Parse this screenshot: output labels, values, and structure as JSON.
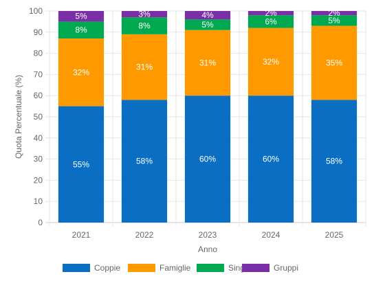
{
  "chart_data": {
    "type": "bar",
    "stacked": true,
    "categories": [
      "2021",
      "2022",
      "2023",
      "2024",
      "2025"
    ],
    "series": [
      {
        "name": "Coppie",
        "color": "#0a6fc2",
        "values": [
          55,
          58,
          60,
          60,
          58
        ]
      },
      {
        "name": "Famiglie",
        "color": "#ff9900",
        "values": [
          32,
          31,
          31,
          32,
          35
        ]
      },
      {
        "name": "Single",
        "color": "#00a94f",
        "values": [
          8,
          8,
          5,
          6,
          5
        ]
      },
      {
        "name": "Gruppi",
        "color": "#7b2fa6",
        "values": [
          5,
          3,
          4,
          2,
          2
        ]
      }
    ],
    "data_labels": [
      [
        "55%",
        "58%",
        "60%",
        "60%",
        "58%"
      ],
      [
        "32%",
        "31%",
        "31%",
        "32%",
        "35%"
      ],
      [
        "8%",
        "8%",
        "5%",
        "6%",
        "5%"
      ],
      [
        "5%",
        "3%",
        "4%",
        "2%",
        "2%"
      ]
    ],
    "xlabel": "Anno",
    "ylabel": "Quota Percentuale (%)",
    "ylim": [
      0,
      100
    ],
    "yticks": [
      0,
      10,
      20,
      30,
      40,
      50,
      60,
      70,
      80,
      90,
      100
    ],
    "grid": true,
    "legend_position": "bottom"
  }
}
